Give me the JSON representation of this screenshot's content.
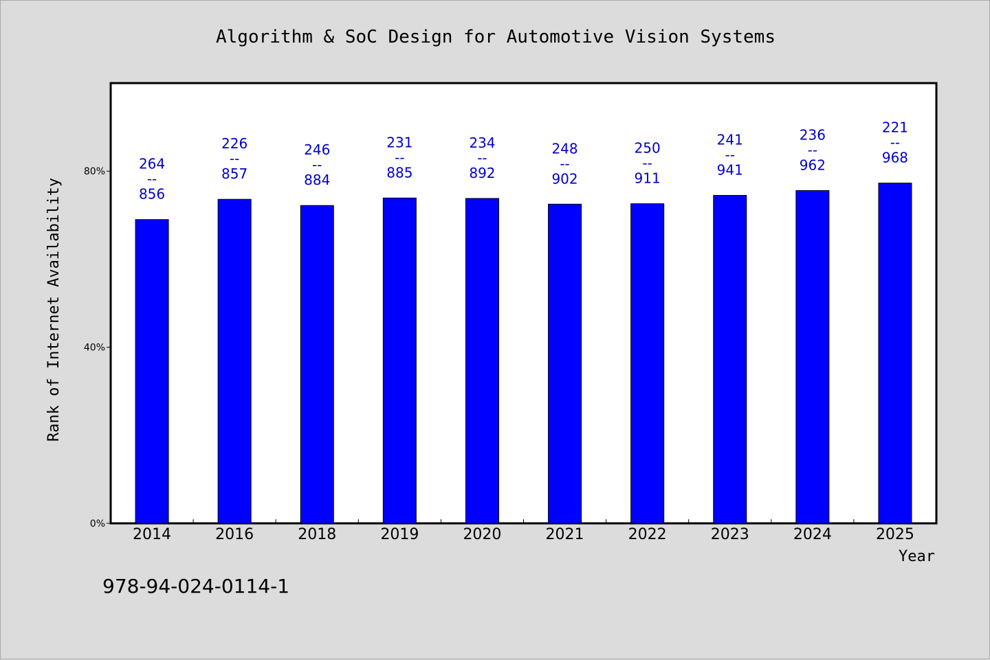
{
  "chart_data": {
    "type": "bar",
    "title": "Algorithm & SoC Design for Automotive Vision Systems",
    "xlabel": "Year",
    "ylabel": "Rank of Internet Availability",
    "categories": [
      "2014",
      "2016",
      "2018",
      "2019",
      "2020",
      "2021",
      "2022",
      "2023",
      "2024",
      "2025"
    ],
    "values": [
      69,
      73.6,
      72.2,
      73.9,
      73.8,
      72.5,
      72.6,
      74.5,
      75.6,
      77.3
    ],
    "value_unit": "%",
    "labels": [
      [
        "264",
        "--",
        "856"
      ],
      [
        "226",
        "--",
        "857"
      ],
      [
        "246",
        "--",
        "884"
      ],
      [
        "231",
        "--",
        "885"
      ],
      [
        "234",
        "--",
        "892"
      ],
      [
        "248",
        "--",
        "902"
      ],
      [
        "250",
        "--",
        "911"
      ],
      [
        "241",
        "--",
        "941"
      ],
      [
        "236",
        "--",
        "962"
      ],
      [
        "221",
        "--",
        "968"
      ]
    ],
    "ylim": [
      0,
      100
    ],
    "yticks": [
      0,
      40,
      80
    ],
    "ytick_labels": [
      "0%",
      "40%",
      "80%"
    ],
    "grid": false,
    "legend": "none",
    "colors": {
      "bar": "#0000ff",
      "label": "#0000cc",
      "plot_bg": "#ffffff",
      "page_bg": "#dcdcdc"
    }
  },
  "footer": {
    "code": "978-94-024-0114-1"
  }
}
